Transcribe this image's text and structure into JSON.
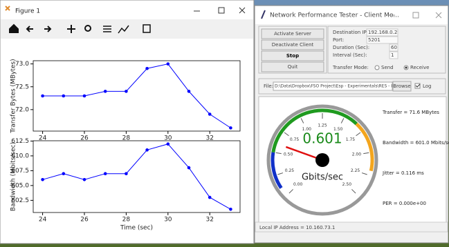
{
  "figure_window": {
    "title": "Figure 1",
    "charts": [
      {
        "type": "line",
        "ylabel": "Transfer Bytes (MBytes)",
        "color": "#0000ff",
        "x": [
          24,
          25,
          26,
          27,
          28,
          29,
          30,
          31,
          32,
          33
        ],
        "values": [
          72.3,
          72.3,
          72.3,
          72.4,
          72.4,
          72.9,
          73.0,
          72.4,
          71.9,
          71.6
        ],
        "xlim": [
          23.55,
          33.45
        ],
        "ylim": [
          71.53,
          73.07
        ],
        "xticks": [
          24,
          26,
          28,
          30,
          32
        ],
        "yticks": [
          {
            "value": 72,
            "label": "72.0"
          },
          72.5,
          {
            "value": 73,
            "label": "73.0"
          }
        ]
      },
      {
        "type": "line",
        "ylabel": "Bandwidth (Mbits/sec)",
        "xlabel": "Time (sec)",
        "color": "#0000ff",
        "x": [
          24,
          25,
          26,
          27,
          28,
          29,
          30,
          31,
          32,
          33
        ],
        "values": [
          606,
          607,
          606,
          607,
          607,
          611,
          612,
          608,
          603,
          601
        ],
        "xlim": [
          23.55,
          33.45
        ],
        "ylim": [
          600.45,
          612.55
        ],
        "xticks": [
          24,
          26,
          28,
          30,
          32
        ],
        "yticks": [
          602.5,
          {
            "value": 605,
            "label": "605.0"
          },
          607.5,
          {
            "value": 610,
            "label": "610.0"
          },
          612.5
        ]
      }
    ]
  },
  "app_window": {
    "title": "Network Performance Tester - Client Mo...",
    "buttons": [
      "Activate Server",
      "Deactivate Client",
      "Stop",
      "Quit"
    ],
    "fields": [
      {
        "label": "Destination IP:",
        "value": "192.168.0.2"
      },
      {
        "label": "Port:",
        "value": "5201"
      },
      {
        "label": "Duration (Sec):",
        "value": "60"
      },
      {
        "label": "Interval (Sec):",
        "value": "1"
      }
    ],
    "transfer_mode": {
      "label": "Transfer Mode:",
      "options": [
        {
          "label": "Send",
          "selected": false
        },
        {
          "label": "Receive",
          "selected": true
        }
      ]
    },
    "file": {
      "label": "File:",
      "path": "D:\\Data\\Dropbox\\FSO Project\\Esp - Experimentals\\RES - I",
      "browse": "Browse",
      "log": {
        "label": "Log",
        "checked": true
      }
    },
    "gauge": {
      "value": 0.601,
      "unit": "Gbits/sec",
      "range": [
        0,
        2.5
      ],
      "ticks": [
        {
          "value": 0,
          "label": "0.00"
        },
        0.25,
        {
          "value": 0.5,
          "label": "0.50"
        },
        0.75,
        {
          "value": 1,
          "label": "1.00"
        },
        1.25,
        {
          "value": 1.5,
          "label": "1.50"
        },
        1.75,
        {
          "value": 2,
          "label": "2.00"
        },
        2.25,
        {
          "value": 2.5,
          "label": "2.50"
        }
      ]
    },
    "stats": [
      "Transfer = 71.6 MBytes",
      "Bandwidth = 601.0 Mbits/sec",
      "Jitter = 0.116 ms",
      "PER = 0.000e+00"
    ],
    "status": "Local IP Address = 10.160.73.1"
  }
}
